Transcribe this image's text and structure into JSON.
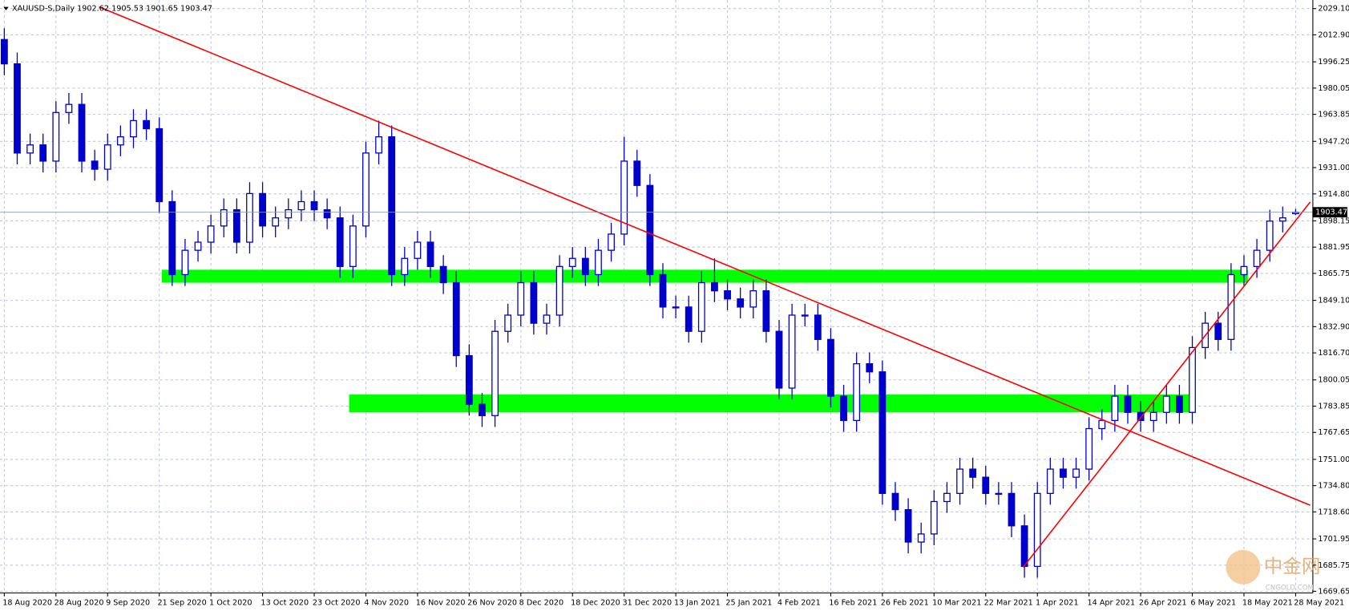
{
  "chart_data": {
    "type": "candlestick",
    "title": "XAUUSD-S,Daily  1902.62 1905.53 1901.65 1903.47",
    "watermark": [
      "中金网",
      "CNGOLD.COM"
    ],
    "categories": [
      "18 Aug 2020",
      null,
      null,
      null,
      "28 Aug 2020",
      null,
      null,
      null,
      "9 Sep 2020",
      null,
      null,
      null,
      "21 Sep 2020",
      null,
      null,
      null,
      "1 Oct 2020",
      null,
      null,
      null,
      "13 Oct 2020",
      null,
      null,
      null,
      "23 Oct 2020",
      null,
      null,
      null,
      "4 Nov 2020",
      null,
      null,
      null,
      "16 Nov 2020",
      null,
      null,
      null,
      "26 Nov 2020",
      null,
      null,
      null,
      "8 Dec 2020",
      null,
      null,
      null,
      "18 Dec 2020",
      null,
      null,
      null,
      "31 Dec 2020",
      null,
      null,
      null,
      "13 Jan 2021",
      null,
      null,
      null,
      "25 Jan 2021",
      null,
      null,
      null,
      "4 Feb 2021",
      null,
      null,
      null,
      "16 Feb 2021",
      null,
      null,
      null,
      "26 Feb 2021",
      null,
      null,
      null,
      "10 Mar 2021",
      null,
      null,
      null,
      "22 Mar 2021",
      null,
      null,
      null,
      "1 Apr 2021",
      null,
      null,
      null,
      "14 Apr 2021",
      null,
      null,
      null,
      "26 Apr 2021",
      null,
      null,
      null,
      "6 May 2021",
      null,
      null,
      null,
      "18 May 2021",
      null,
      null,
      null,
      "28 May 2021"
    ],
    "open": [
      2010,
      1995,
      1940,
      1945,
      1935,
      1965,
      1970,
      1935,
      1930,
      1945,
      1950,
      1960,
      1955,
      1910,
      1865,
      1880,
      1885,
      1895,
      1905,
      1885,
      1915,
      1895,
      1900,
      1905,
      1910,
      1905,
      1900,
      1870,
      1895,
      1940,
      1950,
      1865,
      1875,
      1885,
      1870,
      1860,
      1815,
      1785,
      1778,
      1830,
      1840,
      1860,
      1835,
      1840,
      1870,
      1875,
      1865,
      1880,
      1890,
      1935,
      1920,
      1865,
      1845,
      1845,
      1830,
      1860,
      1855,
      1850,
      1845,
      1855,
      1830,
      1795,
      1840,
      1840,
      1825,
      1790,
      1775,
      1810,
      1805,
      1730,
      1720,
      1700,
      1705,
      1725,
      1730,
      1745,
      1740,
      1730,
      1730,
      1710,
      1685,
      1730,
      1745,
      1740,
      1745,
      1770,
      1775,
      1790,
      1780,
      1775,
      1780,
      1790,
      1780,
      1820,
      1835,
      1825,
      1865,
      1870,
      1880,
      1898,
      1902.62
    ],
    "high": [
      2017,
      2002,
      1952,
      1952,
      1972,
      1977,
      1977,
      1942,
      1952,
      1957,
      1967,
      1967,
      1962,
      1917,
      1887,
      1892,
      1902,
      1912,
      1912,
      1922,
      1922,
      1907,
      1912,
      1917,
      1917,
      1912,
      1907,
      1902,
      1947,
      1960,
      1957,
      1882,
      1892,
      1892,
      1877,
      1867,
      1822,
      1792,
      1837,
      1847,
      1867,
      1867,
      1847,
      1877,
      1882,
      1882,
      1887,
      1897,
      1950,
      1942,
      1927,
      1872,
      1852,
      1852,
      1867,
      1875,
      1862,
      1857,
      1862,
      1862,
      1837,
      1847,
      1847,
      1847,
      1832,
      1797,
      1817,
      1817,
      1812,
      1737,
      1727,
      1712,
      1732,
      1737,
      1752,
      1752,
      1747,
      1737,
      1737,
      1717,
      1737,
      1752,
      1752,
      1752,
      1777,
      1782,
      1797,
      1797,
      1787,
      1787,
      1797,
      1797,
      1827,
      1842,
      1842,
      1872,
      1877,
      1887,
      1905,
      1907,
      1905.53
    ],
    "low": [
      1988,
      1933,
      1933,
      1928,
      1928,
      1958,
      1928,
      1923,
      1923,
      1938,
      1943,
      1948,
      1903,
      1858,
      1858,
      1873,
      1878,
      1888,
      1878,
      1878,
      1888,
      1888,
      1893,
      1898,
      1898,
      1893,
      1863,
      1863,
      1888,
      1933,
      1858,
      1858,
      1868,
      1863,
      1853,
      1808,
      1778,
      1771,
      1771,
      1823,
      1833,
      1828,
      1828,
      1833,
      1863,
      1858,
      1858,
      1873,
      1883,
      1913,
      1858,
      1838,
      1838,
      1823,
      1823,
      1848,
      1843,
      1838,
      1838,
      1823,
      1788,
      1788,
      1833,
      1818,
      1783,
      1768,
      1768,
      1798,
      1723,
      1713,
      1693,
      1693,
      1698,
      1718,
      1723,
      1733,
      1723,
      1723,
      1703,
      1678,
      1678,
      1723,
      1733,
      1733,
      1738,
      1763,
      1768,
      1773,
      1768,
      1768,
      1773,
      1773,
      1773,
      1813,
      1818,
      1818,
      1858,
      1863,
      1873,
      1891,
      1901.65
    ],
    "close": [
      1995,
      1940,
      1945,
      1935,
      1965,
      1970,
      1935,
      1930,
      1945,
      1950,
      1960,
      1955,
      1910,
      1865,
      1880,
      1885,
      1895,
      1905,
      1885,
      1915,
      1895,
      1900,
      1905,
      1910,
      1905,
      1900,
      1870,
      1895,
      1940,
      1950,
      1865,
      1875,
      1885,
      1870,
      1860,
      1815,
      1785,
      1778,
      1830,
      1840,
      1860,
      1835,
      1840,
      1870,
      1875,
      1865,
      1880,
      1890,
      1935,
      1920,
      1865,
      1845,
      1845,
      1830,
      1860,
      1855,
      1850,
      1845,
      1855,
      1830,
      1795,
      1840,
      1840,
      1825,
      1790,
      1775,
      1810,
      1805,
      1730,
      1720,
      1700,
      1705,
      1725,
      1730,
      1745,
      1740,
      1730,
      1730,
      1710,
      1685,
      1730,
      1745,
      1740,
      1745,
      1770,
      1775,
      1790,
      1780,
      1775,
      1780,
      1790,
      1780,
      1820,
      1835,
      1825,
      1865,
      1870,
      1880,
      1898,
      1900,
      1903.47
    ],
    "color": "#0000cc",
    "ylim": [
      1668.6,
      2034.4
    ],
    "yticks": [
      {
        "value": 2029.1,
        "label": "2029.10"
      },
      {
        "value": 2012.9,
        "label": "2012.90"
      },
      1996.25,
      1980.05,
      1963.85,
      {
        "value": 1947.2,
        "label": "1947.20"
      },
      {
        "value": 1931,
        "label": "1931.00"
      },
      {
        "value": 1914.8,
        "label": "1914.80"
      },
      1898.15,
      1881.95,
      1865.75,
      {
        "value": 1849.1,
        "label": "1849.10"
      },
      {
        "value": 1832.9,
        "label": "1832.90"
      },
      {
        "value": 1816.7,
        "label": "1816.70"
      },
      1800.05,
      1783.85,
      1767.65,
      {
        "value": 1751,
        "label": "1751.00"
      },
      {
        "value": 1734.8,
        "label": "1734.80"
      },
      {
        "value": 1718.6,
        "label": "1718.60"
      },
      1701.95,
      1685.75,
      1669.65
    ],
    "grid": true,
    "zones": [
      {
        "color": "#00ff00",
        "low": 1860,
        "high": 1868,
        "start": 12.2,
        "end": 96.3
      },
      {
        "color": "#00ff00",
        "low": 1780,
        "high": 1791,
        "start": 26.7,
        "end": 91.8
      }
    ],
    "trendlines": [
      {
        "color": "#ff0000",
        "start": [
          7.33,
          2030.2
        ],
        "end": [
          101.13,
          1722.7
        ]
      },
      {
        "color": "#ff0000",
        "start": [
          78.9,
          1684.5
        ],
        "end": [
          101.13,
          1909.8
        ]
      }
    ]
  }
}
